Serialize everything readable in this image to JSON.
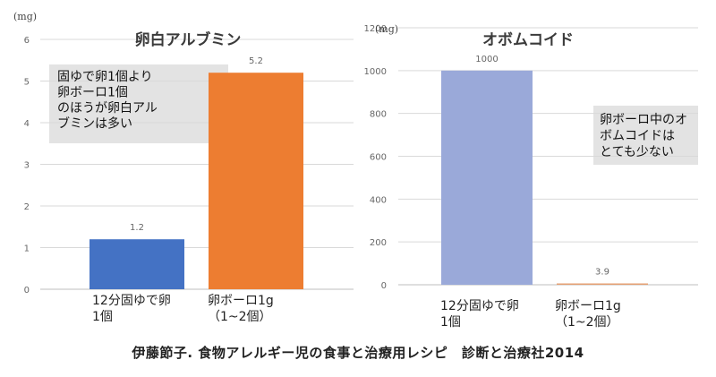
{
  "chart_data": [
    {
      "type": "bar",
      "title": "卵白アルブミン",
      "unit": "(mg)",
      "categories": [
        "12分固ゆで卵\n1個",
        "卵ボーロ1g\n（1~2個）"
      ],
      "values": [
        1.2,
        5.2
      ],
      "data_labels": [
        "1.2",
        "5.2"
      ],
      "ylim": [
        0,
        6
      ],
      "yticks": [
        "0",
        "1",
        "2",
        "3",
        "4",
        "5",
        "6"
      ],
      "grid": true,
      "legend": "none",
      "colors": [
        "#4472C4",
        "#ED7D31"
      ],
      "annotation": "固ゆで卵1個より\n卵ボーロ1個\nのほうが卵白アル\nブミンは多い"
    },
    {
      "type": "bar",
      "title": "オボムコイド",
      "unit": "(mg)",
      "categories": [
        "12分固ゆで卵\n1個",
        "卵ボーロ1g\n（1~2個）"
      ],
      "values": [
        1000,
        3.9
      ],
      "data_labels": [
        "1000",
        "3.9"
      ],
      "ylim": [
        0,
        1200
      ],
      "yticks": [
        "0",
        "200",
        "400",
        "600",
        "800",
        "1000",
        "1200"
      ],
      "grid": true,
      "legend": "none",
      "colors": [
        "#9AA9D9",
        "#E4A073"
      ],
      "annotation": "卵ボーロ中のオ\nボムコイドは\nとても少ない"
    }
  ],
  "footer": "伊藤節子. 食物アレルギー児の食事と治療用レシピ　診断と治療社2014"
}
